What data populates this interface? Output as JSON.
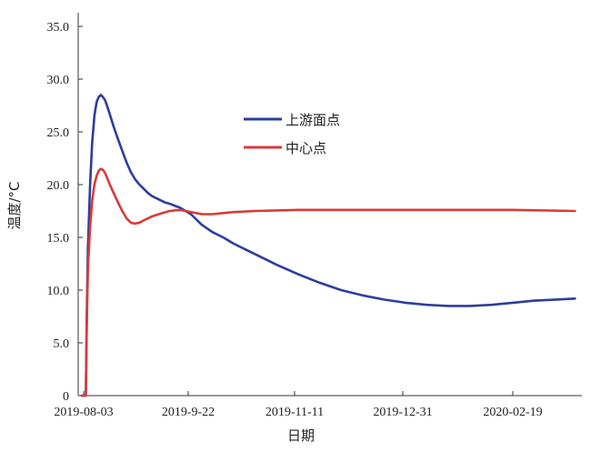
{
  "chart_data": {
    "type": "line",
    "xlabel": "日期",
    "ylabel": "温度/°C",
    "ylim": [
      0,
      35
    ],
    "y_ticks": [
      "0",
      "5.0",
      "10.0",
      "15.0",
      "20.0",
      "25.0",
      "30.0",
      "35.0"
    ],
    "x_ticks": [
      "2019-08-03",
      "2019-9-22",
      "2019-11-11",
      "2019-12-31",
      "2020-02-19"
    ],
    "xlim_days": [
      0,
      229
    ],
    "grid": false,
    "legend_position": "upper-center",
    "series": [
      {
        "name": "上游面点",
        "color": "#2c3e9c",
        "x_days": [
          -1,
          1,
          1.5,
          2,
          3,
          4,
          5,
          6,
          7,
          8,
          9,
          10,
          11,
          12,
          14,
          16,
          18,
          20,
          22,
          24,
          26,
          28,
          30,
          32,
          34,
          36,
          38,
          40,
          45,
          50,
          55,
          60,
          65,
          70,
          75,
          80,
          90,
          100,
          110,
          120,
          130,
          140,
          150,
          160,
          170,
          180,
          190,
          200,
          210,
          220,
          229
        ],
        "y": [
          0,
          0,
          8,
          14,
          20,
          24,
          26.5,
          27.8,
          28.3,
          28.5,
          28.3,
          28,
          27.4,
          26.8,
          25.5,
          24.3,
          23.2,
          22.1,
          21.2,
          20.5,
          20,
          19.6,
          19.2,
          18.9,
          18.7,
          18.5,
          18.3,
          18.2,
          17.8,
          17.2,
          16.2,
          15.5,
          15,
          14.4,
          13.9,
          13.4,
          12.4,
          11.5,
          10.7,
          10,
          9.5,
          9.1,
          8.8,
          8.6,
          8.5,
          8.5,
          8.6,
          8.8,
          9,
          9.1,
          9.2
        ]
      },
      {
        "name": "中心点",
        "color": "#d93a3a",
        "x_days": [
          -1,
          1,
          1.5,
          2,
          3,
          4,
          5,
          6,
          7,
          8,
          9,
          10,
          11,
          12,
          14,
          16,
          18,
          20,
          22,
          24,
          26,
          28,
          30,
          32,
          35,
          40,
          45,
          50,
          55,
          60,
          65,
          70,
          80,
          100,
          120,
          140,
          160,
          180,
          200,
          229
        ],
        "y": [
          0,
          0,
          7,
          12,
          16,
          18.5,
          20,
          20.8,
          21.3,
          21.5,
          21.4,
          21.1,
          20.6,
          20.1,
          19.2,
          18.3,
          17.5,
          16.8,
          16.4,
          16.3,
          16.4,
          16.6,
          16.8,
          17,
          17.2,
          17.5,
          17.6,
          17.4,
          17.2,
          17.2,
          17.3,
          17.4,
          17.5,
          17.6,
          17.6,
          17.6,
          17.6,
          17.6,
          17.6,
          17.5
        ]
      }
    ]
  }
}
